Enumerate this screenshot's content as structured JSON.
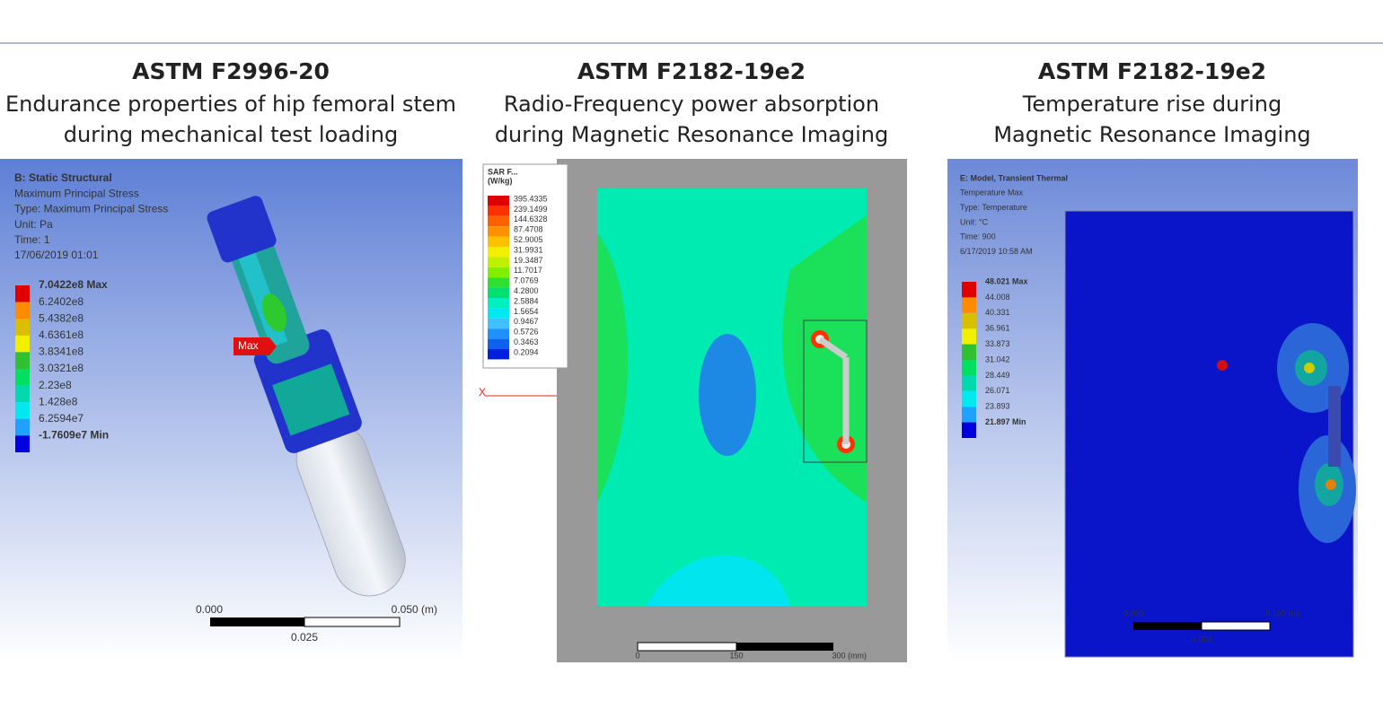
{
  "panels": [
    {
      "standard": "ASTM F2996-20",
      "subtitle": [
        "Endurance properties of hip femoral stem",
        "during mechanical test loading"
      ],
      "info": [
        "B: Static Structural",
        "Maximum Principal Stress",
        "Type: Maximum Principal Stress",
        "Unit: Pa",
        "Time: 1",
        "17/06/2019 01:01"
      ],
      "legend": [
        "7.0422e8 Max",
        "6.2402e8",
        "5.4382e8",
        "4.6361e8",
        "3.8341e8",
        "3.0321e8",
        "2.23e8",
        "1.428e8",
        "6.2594e7",
        "-1.7609e7 Min"
      ],
      "marker": "Max",
      "scale": [
        "0.000",
        "0.050 (m)",
        "0.025"
      ]
    },
    {
      "standard": "ASTM F2182-19e2",
      "subtitle": [
        "Radio-Frequency power absorption",
        "during Magnetic Resonance Imaging"
      ],
      "legend_title": [
        "SAR F...",
        "(W/kg)"
      ],
      "legend": [
        "395.4335",
        "239.1499",
        "144.6328",
        "87.4708",
        "52.9005",
        "31.9931",
        "19.3487",
        "11.7017",
        "7.0769",
        "4.2800",
        "2.5884",
        "1.5654",
        "0.9467",
        "0.5726",
        "0.3463",
        "0.2094"
      ],
      "axis": "X",
      "scale": [
        "0",
        "150",
        "300 (mm)"
      ]
    },
    {
      "standard": "ASTM F2182-19e2",
      "subtitle": [
        "Temperature rise during",
        "Magnetic Resonance Imaging"
      ],
      "info": [
        "E: Model, Transient Thermal",
        "Temperature Max",
        "Type: Temperature",
        "Unit: °C",
        "Time: 900",
        "6/17/2019 10:58 AM"
      ],
      "legend": [
        "48.021 Max",
        "44.008",
        "40.331",
        "36.961",
        "33.873",
        "31.042",
        "28.449",
        "26.071",
        "23.893",
        "21.897 Min"
      ],
      "scale": [
        "0.000",
        "0.100 (m)",
        "0.050"
      ]
    }
  ]
}
